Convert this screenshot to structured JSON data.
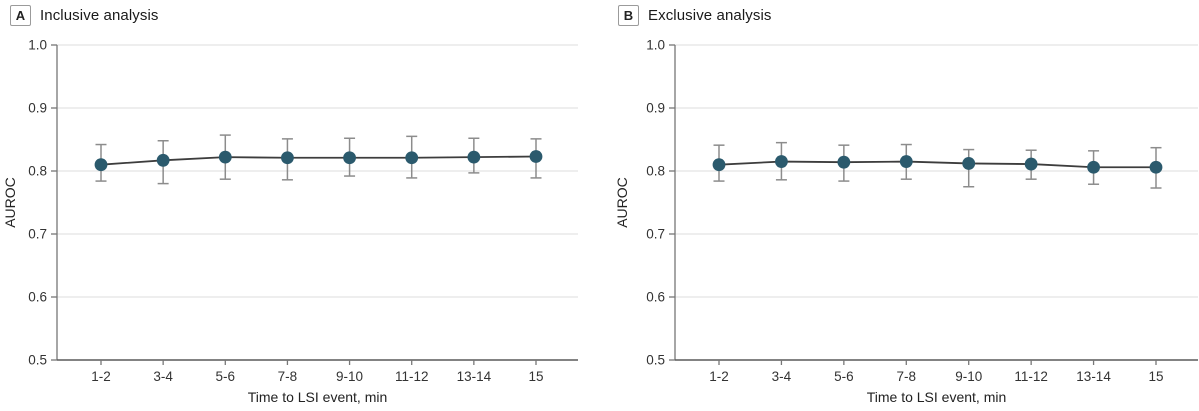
{
  "chart_data": [
    {
      "type": "line",
      "panel_label": "A",
      "title": "Inclusive analysis",
      "xlabel": "Time to LSI event, min",
      "ylabel": "AUROC",
      "categories": [
        "1-2",
        "3-4",
        "5-6",
        "7-8",
        "9-10",
        "11-12",
        "13-14",
        "15"
      ],
      "values": [
        0.81,
        0.817,
        0.822,
        0.821,
        0.821,
        0.821,
        0.822,
        0.823
      ],
      "ci_lower": [
        0.784,
        0.78,
        0.787,
        0.786,
        0.792,
        0.789,
        0.797,
        0.789
      ],
      "ci_upper": [
        0.842,
        0.848,
        0.857,
        0.851,
        0.852,
        0.855,
        0.852,
        0.851
      ],
      "ylim": [
        0.5,
        1.0
      ],
      "yticks": [
        1.0,
        0.9,
        0.8,
        0.7,
        0.6,
        0.5
      ],
      "grid": "horizontal-light",
      "error_bars": true,
      "legend": "none"
    },
    {
      "type": "line",
      "panel_label": "B",
      "title": "Exclusive analysis",
      "xlabel": "Time to LSI event, min",
      "ylabel": "AUROC",
      "categories": [
        "1-2",
        "3-4",
        "5-6",
        "7-8",
        "9-10",
        "11-12",
        "13-14",
        "15"
      ],
      "values": [
        0.81,
        0.815,
        0.814,
        0.815,
        0.812,
        0.811,
        0.806,
        0.806
      ],
      "ci_lower": [
        0.784,
        0.786,
        0.784,
        0.787,
        0.775,
        0.787,
        0.779,
        0.773
      ],
      "ci_upper": [
        0.841,
        0.845,
        0.841,
        0.842,
        0.834,
        0.833,
        0.832,
        0.837
      ],
      "ylim": [
        0.5,
        1.0
      ],
      "yticks": [
        1.0,
        0.9,
        0.8,
        0.7,
        0.6,
        0.5
      ],
      "grid": "horizontal-light",
      "error_bars": true,
      "legend": "none"
    }
  ],
  "colors": {
    "marker": "#2b5a6d",
    "series_line": "#3d3d3d",
    "error_bar": "#8c8c8c",
    "gridline": "#e4e4e4",
    "axis": "#777777",
    "baseline": "#5a5a5a",
    "tick_text": "#333333",
    "axis_title_text": "#222222"
  }
}
